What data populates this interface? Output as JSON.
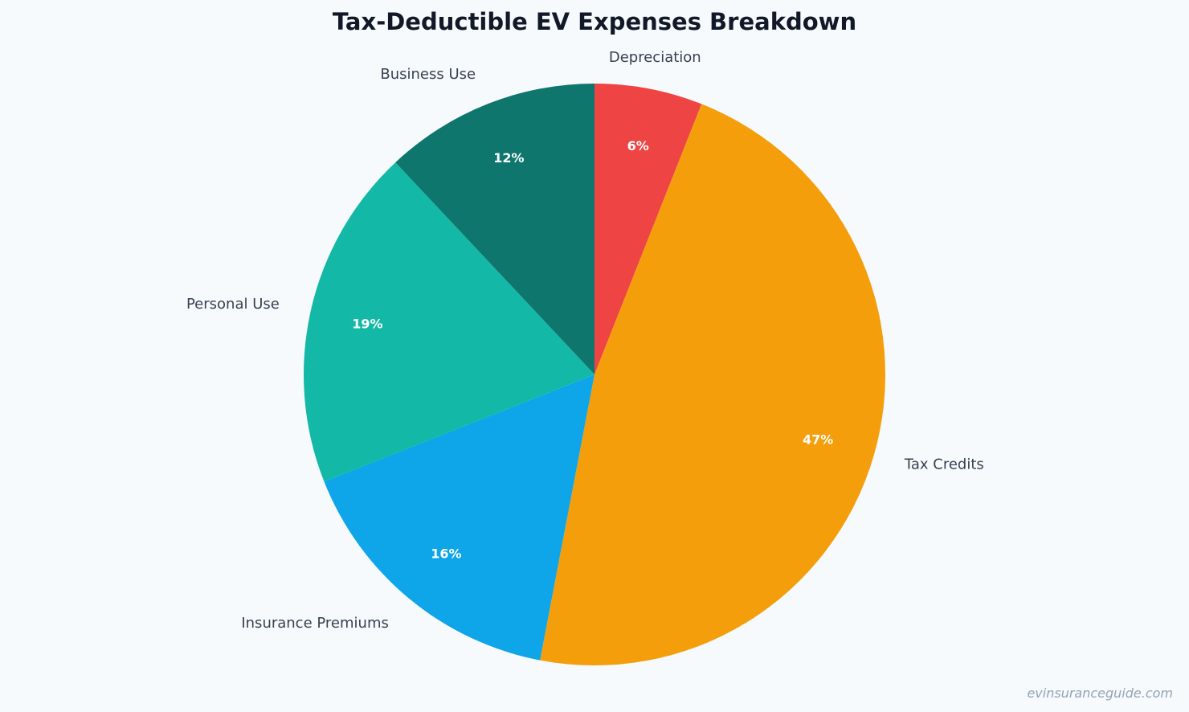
{
  "chart_data": {
    "type": "pie",
    "title": "Tax-Deductible EV Expenses Breakdown",
    "slices": [
      {
        "label": "Depreciation",
        "value": 6,
        "percent_label": "6%",
        "color": "#ef4444"
      },
      {
        "label": "Tax Credits",
        "value": 47,
        "percent_label": "47%",
        "color": "#f59e0b"
      },
      {
        "label": "Insurance Premiums",
        "value": 16,
        "percent_label": "16%",
        "color": "#0ea5e9"
      },
      {
        "label": "Personal Use",
        "value": 19,
        "percent_label": "19%",
        "color": "#14b8a6"
      },
      {
        "label": "Business Use",
        "value": 12,
        "percent_label": "12%",
        "color": "#0f766e"
      }
    ],
    "start_angle": "top",
    "direction": "clockwise"
  },
  "watermark": "evinsuranceguide.com"
}
